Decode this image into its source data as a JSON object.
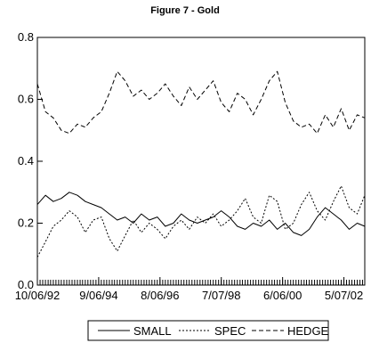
{
  "chart_data": {
    "type": "line",
    "title": "Figure 7 - Gold",
    "xlabel": "",
    "ylabel": "",
    "ylim": [
      0.0,
      0.8
    ],
    "xlim": [
      "1992-10-06",
      "2002-12-31"
    ],
    "yticks": [
      0.0,
      0.2,
      0.4,
      0.6,
      0.8
    ],
    "ytick_labels": [
      "0.0",
      "0.2",
      "0.4",
      "0.6",
      "0.8"
    ],
    "xticks": [
      "1992-10-06",
      "1994-09-06",
      "1996-08-06",
      "1998-07-07",
      "2000-06-06",
      "2002-05-07"
    ],
    "xtick_labels": [
      "10/06/92",
      "9/06/94",
      "8/06/96",
      "7/07/98",
      "6/06/00",
      "5/07/02"
    ],
    "grid": false,
    "legend_position": "bottom",
    "series": [
      {
        "name": "SMALL",
        "style": "solid",
        "x": [
          "1992-10-06",
          "1993-01-06",
          "1993-04-06",
          "1993-07-06",
          "1993-10-06",
          "1994-01-06",
          "1994-04-06",
          "1994-07-06",
          "1994-10-06",
          "1995-01-06",
          "1995-04-06",
          "1995-07-06",
          "1995-10-06",
          "1996-01-06",
          "1996-04-06",
          "1996-07-06",
          "1996-10-06",
          "1997-01-06",
          "1997-04-06",
          "1997-07-06",
          "1997-10-06",
          "1998-01-06",
          "1998-04-06",
          "1998-07-06",
          "1998-10-06",
          "1999-01-06",
          "1999-04-06",
          "1999-07-06",
          "1999-10-06",
          "2000-01-06",
          "2000-04-06",
          "2000-07-06",
          "2000-10-06",
          "2001-01-06",
          "2001-04-06",
          "2001-07-06",
          "2001-10-06",
          "2002-01-06",
          "2002-04-06",
          "2002-07-06",
          "2002-10-06",
          "2002-12-31"
        ],
        "values": [
          0.26,
          0.29,
          0.27,
          0.28,
          0.3,
          0.29,
          0.27,
          0.26,
          0.25,
          0.23,
          0.21,
          0.22,
          0.2,
          0.23,
          0.21,
          0.22,
          0.19,
          0.2,
          0.23,
          0.21,
          0.2,
          0.21,
          0.22,
          0.24,
          0.22,
          0.19,
          0.18,
          0.2,
          0.19,
          0.21,
          0.18,
          0.2,
          0.17,
          0.16,
          0.18,
          0.22,
          0.25,
          0.23,
          0.21,
          0.18,
          0.2,
          0.19
        ]
      },
      {
        "name": "SPEC",
        "style": "dotted",
        "x": [
          "1992-10-06",
          "1993-01-06",
          "1993-04-06",
          "1993-07-06",
          "1993-10-06",
          "1994-01-06",
          "1994-04-06",
          "1994-07-06",
          "1994-10-06",
          "1995-01-06",
          "1995-04-06",
          "1995-07-06",
          "1995-10-06",
          "1996-01-06",
          "1996-04-06",
          "1996-07-06",
          "1996-10-06",
          "1997-01-06",
          "1997-04-06",
          "1997-07-06",
          "1997-10-06",
          "1998-01-06",
          "1998-04-06",
          "1998-07-06",
          "1998-10-06",
          "1999-01-06",
          "1999-04-06",
          "1999-07-06",
          "1999-10-06",
          "2000-01-06",
          "2000-04-06",
          "2000-07-06",
          "2000-10-06",
          "2001-01-06",
          "2001-04-06",
          "2001-07-06",
          "2001-10-06",
          "2002-01-06",
          "2002-04-06",
          "2002-07-06",
          "2002-10-06",
          "2002-12-31"
        ],
        "values": [
          0.09,
          0.14,
          0.19,
          0.21,
          0.24,
          0.22,
          0.17,
          0.21,
          0.22,
          0.15,
          0.11,
          0.16,
          0.21,
          0.17,
          0.2,
          0.18,
          0.15,
          0.19,
          0.21,
          0.18,
          0.22,
          0.2,
          0.23,
          0.19,
          0.21,
          0.24,
          0.28,
          0.22,
          0.2,
          0.29,
          0.27,
          0.18,
          0.2,
          0.26,
          0.3,
          0.24,
          0.21,
          0.27,
          0.32,
          0.25,
          0.23,
          0.29
        ]
      },
      {
        "name": "HEDGE",
        "style": "dashed",
        "x": [
          "1992-10-06",
          "1993-01-06",
          "1993-04-06",
          "1993-07-06",
          "1993-10-06",
          "1994-01-06",
          "1994-04-06",
          "1994-07-06",
          "1994-10-06",
          "1995-01-06",
          "1995-04-06",
          "1995-07-06",
          "1995-10-06",
          "1996-01-06",
          "1996-04-06",
          "1996-07-06",
          "1996-10-06",
          "1997-01-06",
          "1997-04-06",
          "1997-07-06",
          "1997-10-06",
          "1998-01-06",
          "1998-04-06",
          "1998-07-06",
          "1998-10-06",
          "1999-01-06",
          "1999-04-06",
          "1999-07-06",
          "1999-10-06",
          "2000-01-06",
          "2000-04-06",
          "2000-07-06",
          "2000-10-06",
          "2001-01-06",
          "2001-04-06",
          "2001-07-06",
          "2001-10-06",
          "2002-01-06",
          "2002-04-06",
          "2002-07-06",
          "2002-10-06",
          "2002-12-31"
        ],
        "values": [
          0.65,
          0.56,
          0.54,
          0.5,
          0.49,
          0.52,
          0.51,
          0.54,
          0.56,
          0.62,
          0.69,
          0.66,
          0.61,
          0.63,
          0.6,
          0.62,
          0.65,
          0.61,
          0.58,
          0.64,
          0.6,
          0.63,
          0.66,
          0.59,
          0.56,
          0.62,
          0.6,
          0.55,
          0.6,
          0.66,
          0.69,
          0.59,
          0.53,
          0.51,
          0.52,
          0.49,
          0.55,
          0.51,
          0.57,
          0.5,
          0.55,
          0.54
        ]
      }
    ]
  }
}
